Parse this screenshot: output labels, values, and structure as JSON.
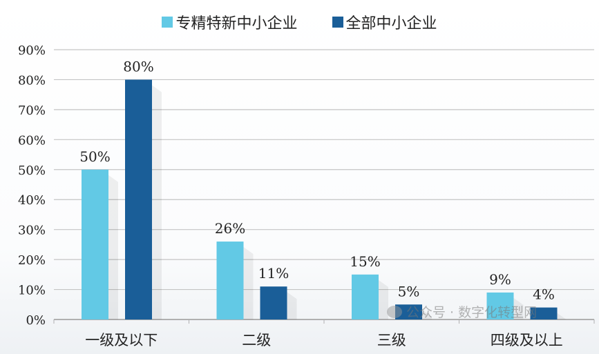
{
  "chart_data": {
    "type": "bar",
    "title": "",
    "xlabel": "",
    "ylabel": "",
    "categories": [
      "一级及以下",
      "二级",
      "三级",
      "四级及以上"
    ],
    "series": [
      {
        "name": "专精特新中小企业",
        "values": [
          50,
          26,
          15,
          9
        ],
        "color": "#62c9e5",
        "labels": [
          "50%",
          "26%",
          "15%",
          "9%"
        ]
      },
      {
        "name": "全部中小企业",
        "values": [
          80,
          11,
          5,
          4
        ],
        "color": "#1a5e98",
        "labels": [
          "80%",
          "11%",
          "5%",
          "4%"
        ]
      }
    ],
    "ylim": [
      0,
      90
    ],
    "yticks": [
      "0%",
      "10%",
      "20%",
      "30%",
      "40%",
      "50%",
      "60%",
      "70%",
      "80%",
      "90%"
    ],
    "grid": true,
    "legend_position": "top-center"
  },
  "watermark": "公众号 · 数字化转型网"
}
